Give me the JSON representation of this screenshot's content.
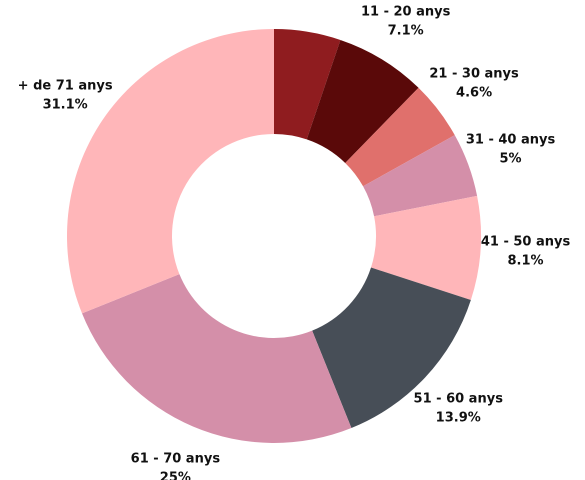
{
  "chart_data": {
    "type": "donut",
    "categories": [
      null,
      "11 - 20 anys",
      "21 - 30 anys",
      "31 - 40 anys",
      "41 - 50 anys",
      "51 - 60 anys",
      "61 - 70 anys",
      "+ de 71 anys"
    ],
    "values": [
      5.2,
      7.1,
      4.6,
      5,
      8.1,
      13.9,
      25,
      31.1
    ],
    "value_labels": [
      null,
      "7.1%",
      "4.6%",
      "5%",
      "8.1%",
      "13.9%",
      "25%",
      "31.1%"
    ],
    "colors": [
      "#8f1c1f",
      "#5a0909",
      "#e0706c",
      "#d48fa9",
      "#ffb6b9",
      "#474e57",
      "#d48fa9",
      "#ffb6b9"
    ]
  }
}
